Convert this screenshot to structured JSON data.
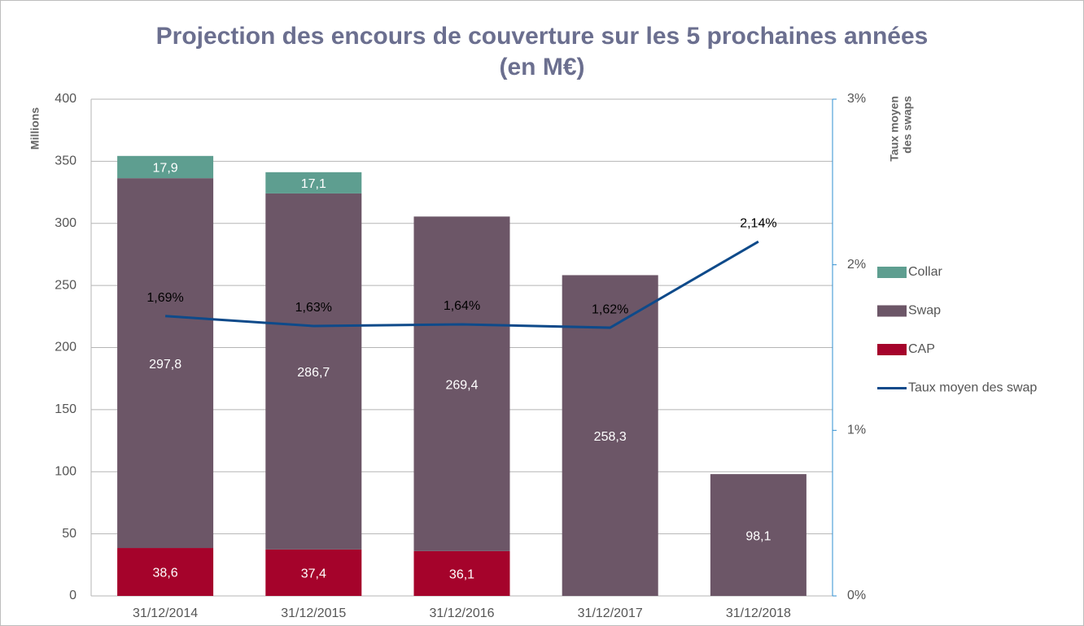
{
  "chart_data": {
    "type": "bar",
    "stacked": true,
    "title": [
      "Projection des encours de couverture sur les 5 prochaines années",
      "(en M€)"
    ],
    "ylabel": "Millions",
    "y2label": [
      "Taux moyen",
      "des swaps"
    ],
    "categories": [
      "31/12/2014",
      "31/12/2015",
      "31/12/2016",
      "31/12/2017",
      "31/12/2018"
    ],
    "series": [
      {
        "name": "Collar",
        "color": "#5e9e90",
        "values": [
          17.9,
          17.1,
          null,
          null,
          null
        ],
        "value_labels": [
          "17,9",
          "17,1",
          null,
          null,
          null
        ]
      },
      {
        "name": "Swap",
        "color": "#6c5667",
        "values": [
          297.8,
          286.7,
          269.4,
          258.3,
          98.1
        ],
        "value_labels": [
          "297,8",
          "286,7",
          "269,4",
          "258,3",
          "98,1"
        ]
      },
      {
        "name": "CAP",
        "color": "#a5032b",
        "values": [
          38.6,
          37.4,
          36.1,
          null,
          null
        ],
        "value_labels": [
          "38,6",
          "37,4",
          "36,1",
          null,
          null
        ]
      },
      {
        "name": "Taux moyen des swap",
        "type": "line",
        "axis": "y2",
        "color": "#0e4a8a",
        "values": [
          1.69,
          1.63,
          1.64,
          1.62,
          2.14
        ],
        "value_labels": [
          "1,69%",
          "1,63%",
          "1,64%",
          "1,62%",
          "2,14%"
        ]
      }
    ],
    "ylim": [
      0,
      400
    ],
    "yticks": [
      0,
      50,
      100,
      150,
      200,
      250,
      300,
      350,
      400
    ],
    "y2lim": [
      0,
      3
    ],
    "y2ticks": [
      {
        "value": 0,
        "label": "0%"
      },
      {
        "value": 1,
        "label": "1%"
      },
      {
        "value": 2,
        "label": "2%"
      },
      {
        "value": 3,
        "label": "3%"
      }
    ],
    "grid": true,
    "legend": "right"
  }
}
